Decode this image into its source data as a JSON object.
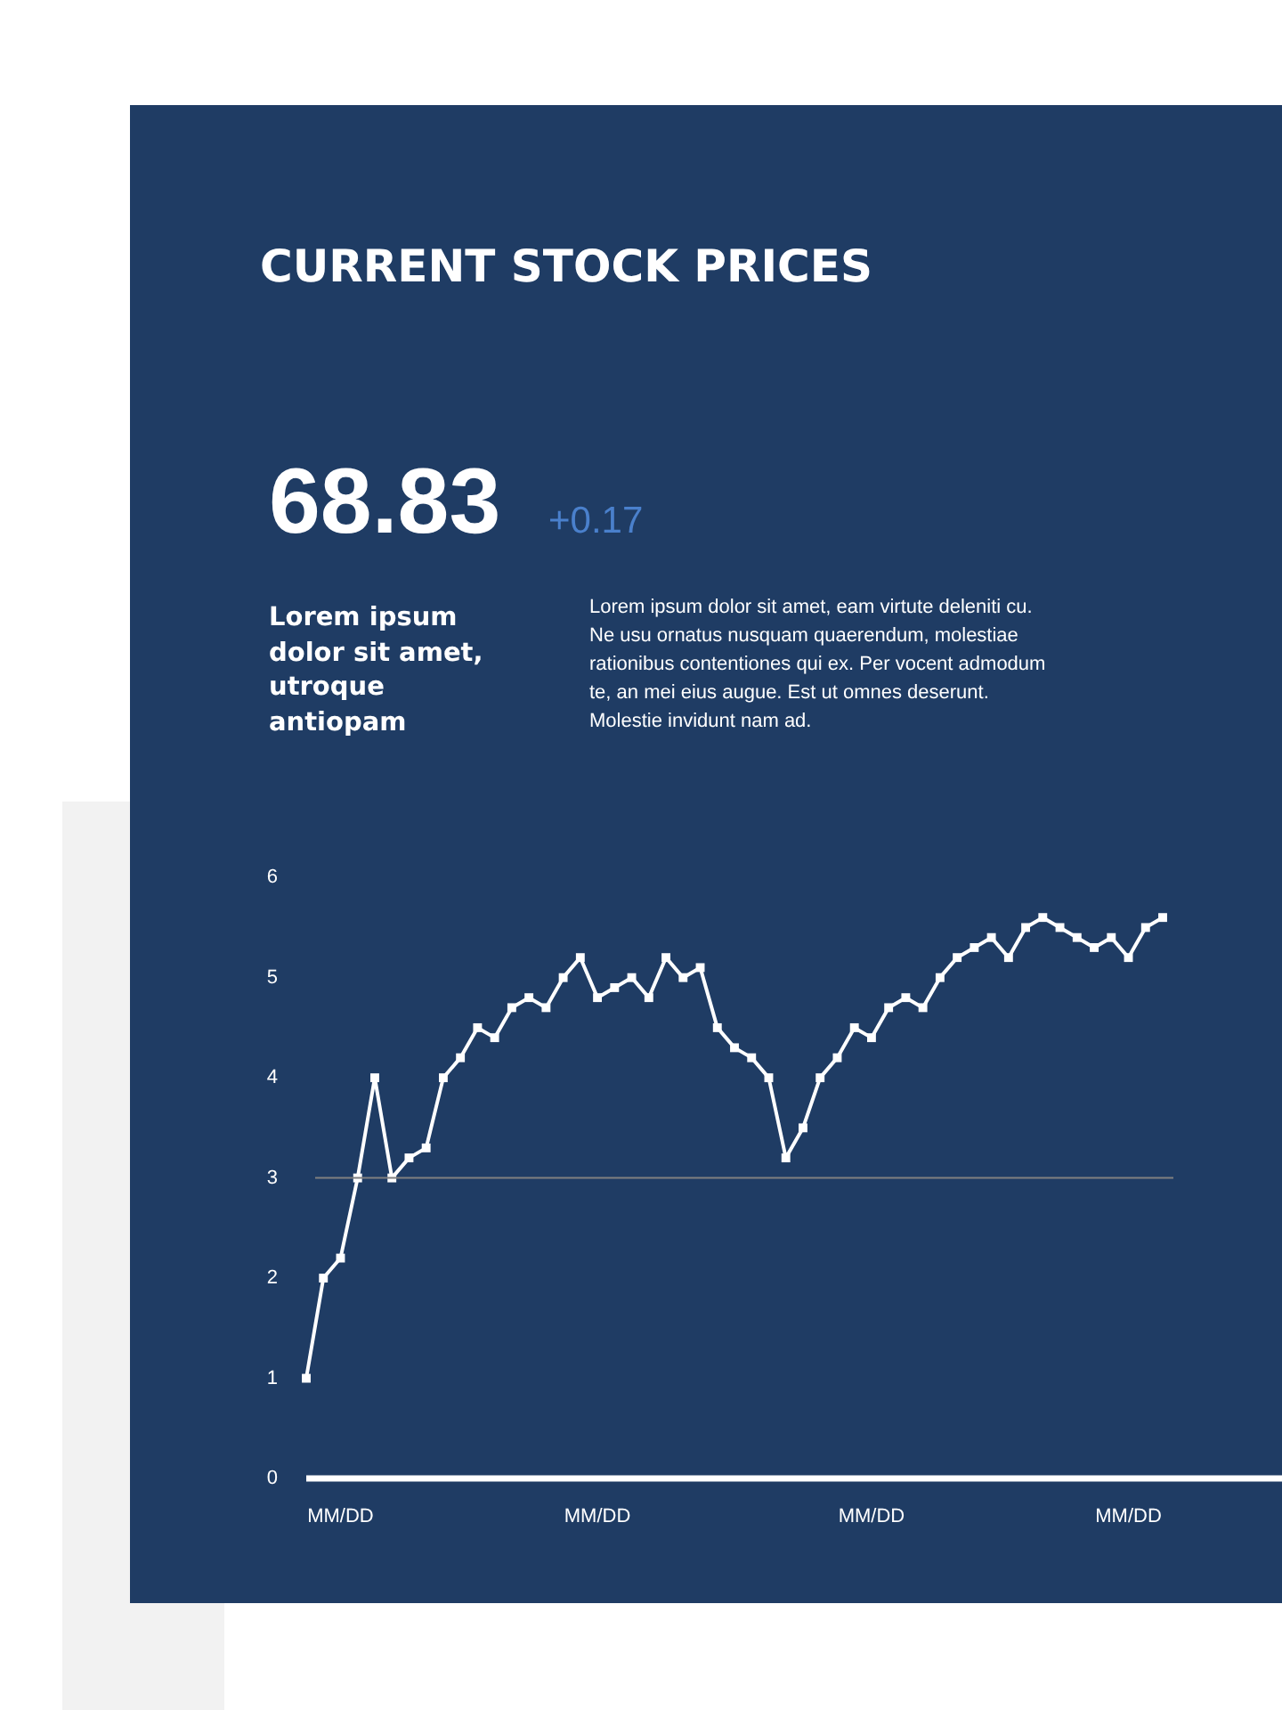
{
  "chart_data": {
    "type": "line",
    "title": "CURRENT STOCK PRICES",
    "annotations": [
      "68.83",
      "+0.17",
      "Lorem ipsum dolor sit amet, utroque antiopam",
      "Lorem ipsum dolor sit amet, eam virtute deleniti cu. Ne usu ornatus nusquam quaerendum, molestiae rationibus contentiones qui ex. Per vocent admodum te, an mei eius augue. Est ut omnes deserunt. Molestie invidunt nam ad."
    ],
    "categories": [
      null,
      null,
      "MM/DD",
      null,
      null,
      null,
      null,
      null,
      null,
      null,
      null,
      null,
      null,
      null,
      null,
      null,
      null,
      "MM/DD",
      null,
      null,
      null,
      null,
      null,
      null,
      null,
      null,
      null,
      null,
      null,
      null,
      null,
      null,
      null,
      "MM/DD",
      null,
      null,
      null,
      null,
      null,
      null,
      null,
      null,
      null,
      null,
      null,
      null,
      null,
      null,
      "MM/DD",
      null,
      null
    ],
    "series": [
      {
        "color": "#ffffff",
        "values": [
          1,
          2,
          2.2,
          3,
          4,
          3,
          3.2,
          3.3,
          4,
          4.2,
          4.5,
          4.4,
          4.7,
          4.8,
          4.7,
          5,
          5.2,
          4.8,
          4.9,
          5,
          4.8,
          5.2,
          5,
          5.1,
          4.5,
          4.3,
          4.2,
          4,
          3.2,
          3.5,
          4,
          4.2,
          4.5,
          4.4,
          4.7,
          4.8,
          4.7,
          5,
          5.2,
          5.3,
          5.4,
          5.2,
          5.5,
          5.6,
          5.5,
          5.4,
          5.3,
          5.4,
          5.2,
          5.5,
          5.6
        ]
      }
    ],
    "ylim": [
      0,
      6
    ],
    "yticks": [
      0,
      1,
      2,
      3,
      4,
      5,
      6
    ],
    "marker": "square",
    "line_style": "solid",
    "ref_lines": [
      {
        "axis": "y",
        "value": 3,
        "color": "#808080"
      }
    ]
  }
}
